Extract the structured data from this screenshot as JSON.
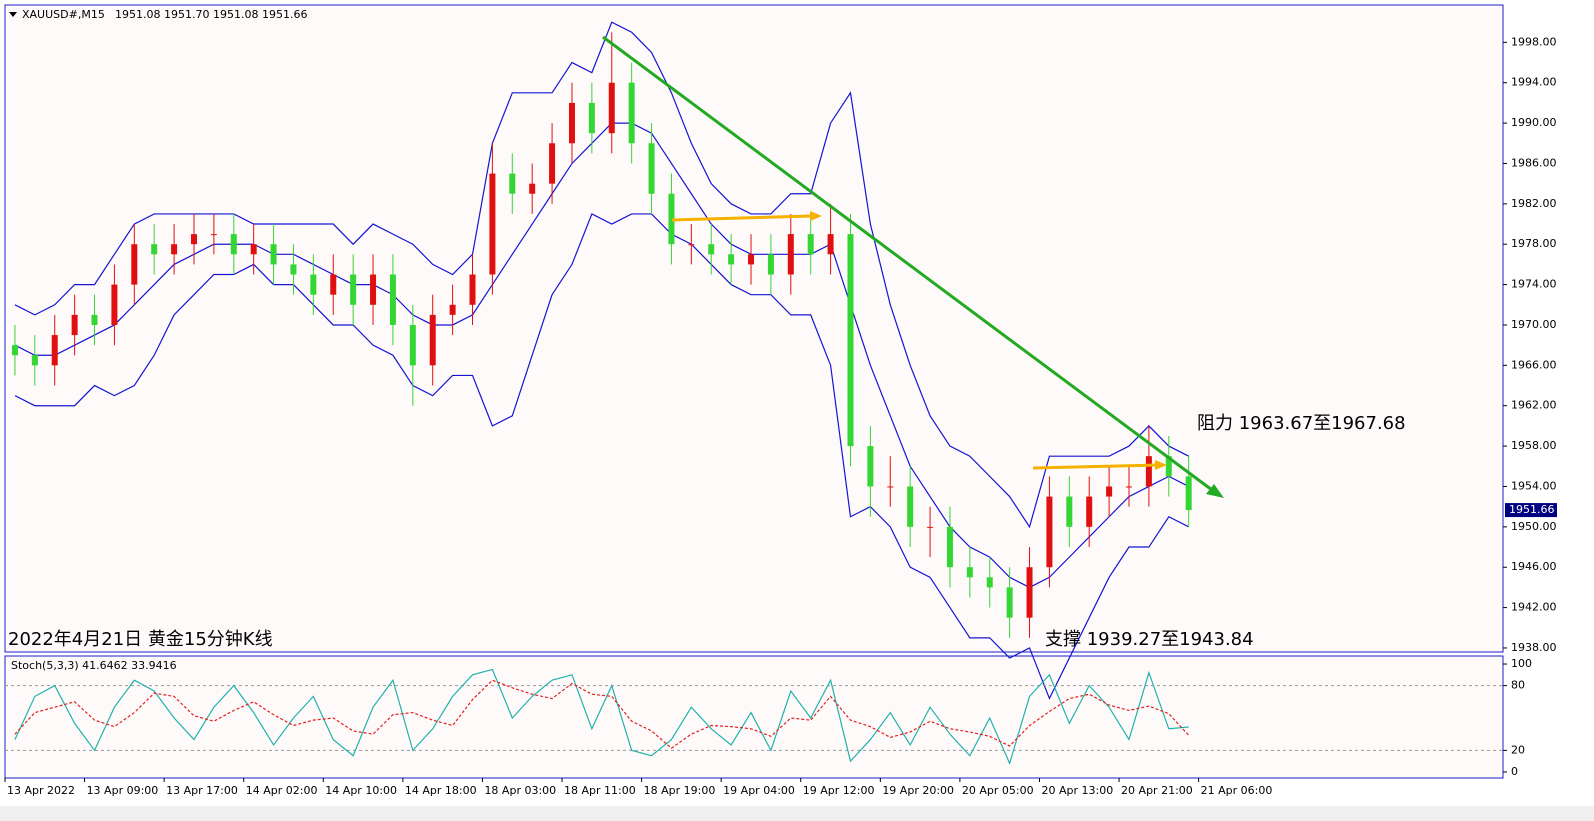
{
  "chart_data": [
    {
      "type": "candlestick",
      "title": "XAUUSD#,M15",
      "subtitle": "1951.08 1951.70 1951.08 1951.66",
      "annotations": [
        "阻力 1963.67至1967.68",
        "2022年4月21日 黄金15分钟K线",
        "支撑 1939.27至1943.84"
      ],
      "open": [
        1968,
        1967,
        1966,
        1969,
        1971,
        1970,
        1974,
        1978,
        1977,
        1978,
        1979,
        1979,
        1977,
        1978,
        1976,
        1975,
        1973,
        1975,
        1972,
        1975,
        1970,
        1966,
        1971,
        1972,
        1975,
        1985,
        1983,
        1984,
        1988,
        1992,
        1989,
        1994,
        1988,
        1983,
        1978,
        1978,
        1977,
        1976,
        1977,
        1975,
        1979,
        1977,
        1979,
        1958,
        1954,
        1954,
        1950,
        1950,
        1946,
        1945,
        1944,
        1941,
        1946,
        1953,
        1950,
        1953,
        1954,
        1954,
        1957,
        1955
      ],
      "high": [
        1970,
        1969,
        1971,
        1973,
        1973,
        1976,
        1980,
        1980,
        1980,
        1981,
        1981,
        1981,
        1980,
        1980,
        1978,
        1977,
        1977,
        1977,
        1977,
        1977,
        1972,
        1973,
        1974,
        1977,
        1988,
        1987,
        1986,
        1990,
        1994,
        1994,
        1999,
        1996,
        1990,
        1985,
        1980,
        1980,
        1979,
        1979,
        1979,
        1981,
        1981,
        1982,
        1981,
        1960,
        1957,
        1956,
        1952,
        1952,
        1948,
        1947,
        1946,
        1948,
        1955,
        1955,
        1955,
        1956,
        1956,
        1960,
        1959,
        1957
      ],
      "low": [
        1965,
        1964,
        1964,
        1967,
        1968,
        1968,
        1972,
        1975,
        1975,
        1976,
        1977,
        1975,
        1975,
        1974,
        1973,
        1971,
        1971,
        1970,
        1970,
        1968,
        1962,
        1964,
        1969,
        1970,
        1973,
        1981,
        1981,
        1982,
        1986,
        1987,
        1987,
        1986,
        1981,
        1976,
        1976,
        1975,
        1974,
        1974,
        1973,
        1973,
        1975,
        1975,
        1956,
        1951,
        1952,
        1948,
        1947,
        1944,
        1943,
        1942,
        1939,
        1939,
        1944,
        1948,
        1948,
        1951,
        1952,
        1952,
        1953,
        1950
      ],
      "close": [
        1967,
        1966,
        1969,
        1971,
        1970,
        1974,
        1978,
        1977,
        1978,
        1979,
        1979,
        1977,
        1978,
        1976,
        1975,
        1973,
        1975,
        1972,
        1975,
        1970,
        1966,
        1971,
        1972,
        1975,
        1985,
        1983,
        1984,
        1988,
        1992,
        1989,
        1994,
        1988,
        1983,
        1978,
        1978,
        1977,
        1976,
        1977,
        1975,
        1979,
        1977,
        1979,
        1958,
        1954,
        1954,
        1950,
        1950,
        1946,
        1945,
        1944,
        1941,
        1946,
        1953,
        1950,
        1953,
        1954,
        1954,
        1957,
        1955,
        1951.66
      ],
      "bands": {
        "color": "#1414d2",
        "upper": [
          1972,
          1971,
          1972,
          1974,
          1974,
          1977,
          1980,
          1981,
          1981,
          1981,
          1981,
          1981,
          1980,
          1980,
          1980,
          1980,
          1980,
          1978,
          1980,
          1979,
          1978,
          1976,
          1975,
          1977,
          1988,
          1993,
          1993,
          1993,
          1996,
          1995,
          2000,
          1999,
          1997,
          1993,
          1988,
          1984,
          1982,
          1981,
          1981,
          1983,
          1983,
          1990,
          1993,
          1980,
          1972,
          1966,
          1961,
          1958,
          1957,
          1955,
          1953,
          1950,
          1957,
          1957,
          1957,
          1957,
          1958,
          1960,
          1958,
          1957
        ],
        "middle": [
          1968,
          1967,
          1967,
          1968,
          1969,
          1970,
          1972,
          1974,
          1976,
          1977,
          1978,
          1978,
          1978,
          1977,
          1977,
          1976,
          1975,
          1974,
          1974,
          1973,
          1971,
          1970,
          1970,
          1971,
          1974,
          1977,
          1980,
          1983,
          1986,
          1988,
          1990,
          1990,
          1989,
          1986,
          1983,
          1980,
          1978,
          1977,
          1977,
          1977,
          1977,
          1978,
          1972,
          1966,
          1961,
          1956,
          1953,
          1950,
          1948,
          1947,
          1945,
          1944,
          1945,
          1947,
          1949,
          1951,
          1953,
          1954,
          1955,
          1954
        ],
        "lower": [
          1963,
          1962,
          1962,
          1962,
          1964,
          1963,
          1964,
          1967,
          1971,
          1973,
          1975,
          1975,
          1976,
          1974,
          1974,
          1972,
          1970,
          1970,
          1968,
          1967,
          1964,
          1963,
          1965,
          1965,
          1960,
          1961,
          1967,
          1973,
          1976,
          1981,
          1980,
          1981,
          1981,
          1979,
          1978,
          1976,
          1974,
          1973,
          1973,
          1971,
          1971,
          1966,
          1951,
          1952,
          1950,
          1946,
          1945,
          1942,
          1939,
          1939,
          1937,
          1938,
          1933,
          1937,
          1941,
          1945,
          1948,
          1948,
          1951,
          1950
        ]
      },
      "up_color": "#e01010",
      "down_color": "#33d633",
      "xlim": [
        0,
        75.3
      ],
      "ylim": [
        1937.6,
        2001.7
      ],
      "yticks": [
        {
          "value": 1938,
          "label": "1938.00"
        },
        {
          "value": 1942,
          "label": "1942.00"
        },
        {
          "value": 1946,
          "label": "1946.00"
        },
        {
          "value": 1950,
          "label": "1950.00"
        },
        {
          "value": 1954,
          "label": "1954.00"
        },
        {
          "value": 1958,
          "label": "1958.00"
        },
        {
          "value": 1962,
          "label": "1962.00"
        },
        {
          "value": 1966,
          "label": "1966.00"
        },
        {
          "value": 1970,
          "label": "1970.00"
        },
        {
          "value": 1974,
          "label": "1974.00"
        },
        {
          "value": 1978,
          "label": "1978.00"
        },
        {
          "value": 1982,
          "label": "1982.00"
        },
        {
          "value": 1986,
          "label": "1986.00"
        },
        {
          "value": 1990,
          "label": "1990.00"
        },
        {
          "value": 1994,
          "label": "1994.00"
        },
        {
          "value": 1998,
          "label": "1998.00"
        }
      ]
    },
    {
      "type": "line",
      "title": "Stoch(5,3,3) 41.6462 33.9416",
      "series": [
        {
          "color": "#20b2aa",
          "values": [
            30,
            70,
            80,
            45,
            20,
            60,
            85,
            75,
            50,
            30,
            60,
            80,
            55,
            25,
            50,
            70,
            30,
            15,
            60,
            85,
            20,
            40,
            70,
            90,
            95,
            50,
            70,
            85,
            90,
            40,
            80,
            20,
            15,
            30,
            60,
            40,
            25,
            55,
            20,
            75,
            50,
            85,
            10,
            30,
            55,
            25,
            60,
            35,
            15,
            50,
            8,
            70,
            90,
            45,
            80,
            60,
            30,
            92,
            40,
            41.6462
          ]
        },
        {
          "color": "#e02020",
          "dashed": true,
          "values": [
            35,
            55,
            60,
            65,
            48,
            42,
            55,
            73,
            70,
            52,
            47,
            57,
            65,
            53,
            43,
            48,
            50,
            38,
            35,
            53,
            55,
            48,
            43,
            67,
            85,
            78,
            72,
            68,
            82,
            72,
            70,
            47,
            38,
            22,
            35,
            43,
            42,
            40,
            33,
            50,
            48,
            70,
            48,
            42,
            32,
            37,
            47,
            40,
            37,
            33,
            24,
            43,
            56,
            68,
            72,
            62,
            57,
            61,
            54,
            33.9416
          ]
        }
      ],
      "levels": [
        20,
        80
      ],
      "xlim": [
        0,
        75.3
      ],
      "ylim": [
        -5.6,
        106.5
      ],
      "yticks": [
        0,
        20,
        80,
        100
      ],
      "xticks": [
        {
          "value": 0,
          "label": "13 Apr 2022"
        },
        {
          "value": 4,
          "label": "13 Apr 09:00"
        },
        {
          "value": 8,
          "label": "13 Apr 17:00"
        },
        {
          "value": 12,
          "label": "14 Apr 02:00"
        },
        {
          "value": 16,
          "label": "14 Apr 10:00"
        },
        {
          "value": 20,
          "label": "14 Apr 18:00"
        },
        {
          "value": 24,
          "label": "18 Apr 03:00"
        },
        {
          "value": 28,
          "label": "18 Apr 11:00"
        },
        {
          "value": 32,
          "label": "18 Apr 19:00"
        },
        {
          "value": 36,
          "label": "19 Apr 04:00"
        },
        {
          "value": 40,
          "label": "19 Apr 12:00"
        },
        {
          "value": 44,
          "label": "19 Apr 20:00"
        },
        {
          "value": 48,
          "label": "20 Apr 05:00"
        },
        {
          "value": 52,
          "label": "20 Apr 13:00"
        },
        {
          "value": 56,
          "label": "20 Apr 21:00"
        },
        {
          "value": 60,
          "label": "21 Apr 06:00"
        }
      ]
    }
  ]
}
